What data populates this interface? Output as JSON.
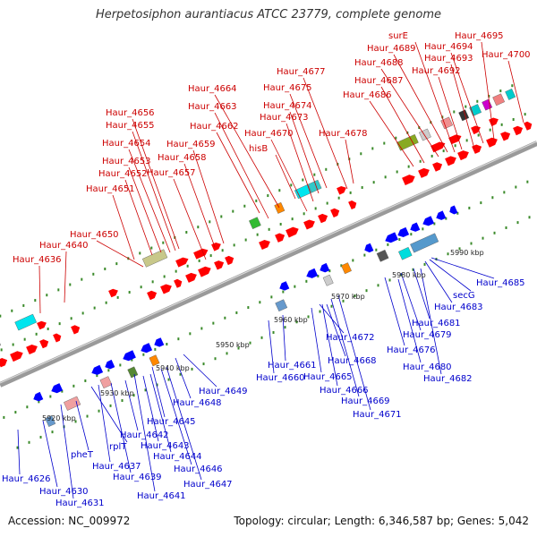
{
  "title": "Herpetosiphon aurantiacus ATCC 23779, complete genome",
  "accession": "Accession: NC_009972",
  "summary": "Topology: circular; Length: 6,346,587 bp; Genes: 5,042",
  "colors": {
    "forward_gene": "#ff0000",
    "reverse_gene": "#0000ff",
    "backbone": "#808080",
    "tick": "#3a8a2a",
    "forward_label": "#cc0000",
    "reverse_label": "#0000cc"
  },
  "kbp_labels": [
    "5920 kbp",
    "5930 kbp",
    "5940 kbp",
    "5950 kbp",
    "5960 kbp",
    "5970 kbp",
    "5980 kbp",
    "5990 kbp"
  ],
  "forward_labels": [
    "Haur_4636",
    "Haur_4640",
    "Haur_4650",
    "Haur_4651",
    "Haur_4652",
    "Haur_4653",
    "Haur_4654",
    "Haur_4655",
    "Haur_4656",
    "Haur_4657",
    "Haur_4658",
    "Haur_4659",
    "Haur_4662",
    "Haur_4663",
    "Haur_4664",
    "hisB",
    "Haur_4670",
    "Haur_4673",
    "Haur_4674",
    "Haur_4675",
    "Haur_4677",
    "Haur_4678",
    "Haur_4686",
    "Haur_4687",
    "Haur_4688",
    "Haur_4689",
    "surE",
    "Haur_4692",
    "Haur_4693",
    "Haur_4694",
    "Haur_4695",
    "Haur_4700"
  ],
  "reverse_labels": [
    "Haur_4626",
    "Haur_4630",
    "Haur_4631",
    "pheT",
    "rplT",
    "Haur_4637",
    "Haur_4639",
    "Haur_4641",
    "Haur_4642",
    "Haur_4643",
    "Haur_4644",
    "Haur_4645",
    "Haur_4646",
    "Haur_4647",
    "Haur_4648",
    "Haur_4649",
    "Haur_4660",
    "Haur_4661",
    "Haur_4665",
    "Haur_4666",
    "Haur_4668",
    "Haur_4669",
    "Haur_4671",
    "Haur_4672",
    "Haur_4676",
    "Haur_4679",
    "Haur_4680",
    "Haur_4681",
    "Haur_4682",
    "Haur_4683",
    "secG",
    "Haur_4685"
  ]
}
